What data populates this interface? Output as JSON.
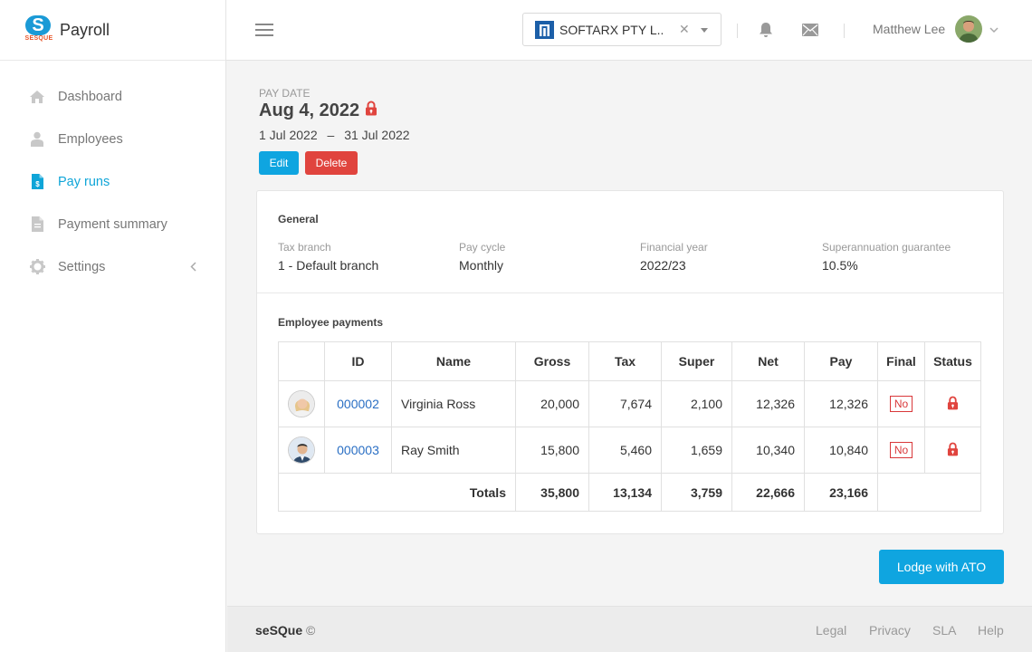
{
  "app": {
    "title": "Payroll",
    "logo_text": "SESQUE",
    "logo_mark": "S"
  },
  "sidebar": {
    "items": [
      {
        "label": "Dashboard",
        "icon": "home-icon"
      },
      {
        "label": "Employees",
        "icon": "user-icon"
      },
      {
        "label": "Pay runs",
        "icon": "document-dollar-icon",
        "active": true
      },
      {
        "label": "Payment summary",
        "icon": "document-icon"
      },
      {
        "label": "Settings",
        "icon": "gear-icon"
      }
    ]
  },
  "header": {
    "company_name": "SOFTARX PTY L...",
    "user_name": "Matthew Lee"
  },
  "payrun": {
    "date_label": "PAY DATE",
    "date": "Aug 4, 2022",
    "period_start": "1 Jul 2022",
    "period_sep": "–",
    "period_end": "31 Jul 2022",
    "edit_label": "Edit",
    "delete_label": "Delete"
  },
  "general": {
    "title": "General",
    "fields": [
      {
        "label": "Tax branch",
        "value": "1 - Default branch"
      },
      {
        "label": "Pay cycle",
        "value": "Monthly"
      },
      {
        "label": "Financial year",
        "value": "2022/23"
      },
      {
        "label": "Superannuation guarantee",
        "value": "10.5%"
      }
    ]
  },
  "payments": {
    "title": "Employee payments",
    "columns": [
      "ID",
      "Name",
      "Gross",
      "Tax",
      "Super",
      "Net",
      "Pay",
      "Final",
      "Status"
    ],
    "rows": [
      {
        "id": "000002",
        "name": "Virginia Ross",
        "gross": "20,000",
        "tax": "7,674",
        "super": "2,100",
        "net": "12,326",
        "pay": "12,326",
        "final": "No"
      },
      {
        "id": "000003",
        "name": "Ray Smith",
        "gross": "15,800",
        "tax": "5,460",
        "super": "1,659",
        "net": "10,340",
        "pay": "10,840",
        "final": "No"
      }
    ],
    "totals": {
      "label": "Totals",
      "gross": "35,800",
      "tax": "13,134",
      "super": "3,759",
      "net": "22,666",
      "pay": "23,166"
    }
  },
  "actions": {
    "lodge_label": "Lodge with ATO"
  },
  "footer": {
    "brand": "seSQue",
    "copy": "©",
    "links": [
      "Legal",
      "Privacy",
      "SLA",
      "Help"
    ]
  },
  "colors": {
    "accent": "#0fa5e0",
    "danger": "#e0443e",
    "link": "#2a6fc4"
  }
}
